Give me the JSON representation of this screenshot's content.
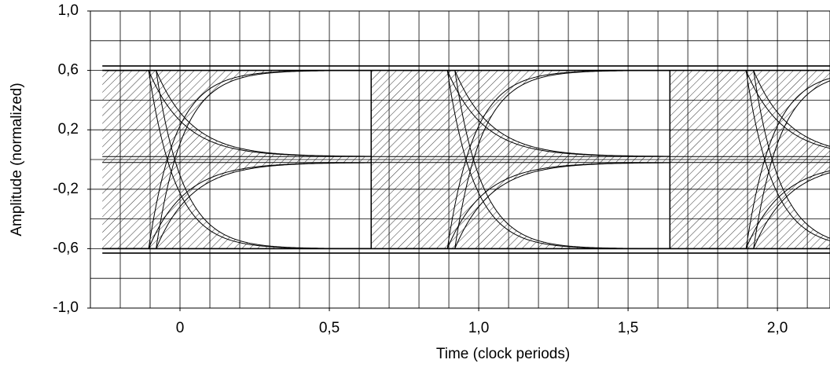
{
  "chart_data": {
    "type": "eye",
    "xlabel": "Time (clock periods)",
    "ylabel": "Amplitude (normalized)",
    "xlim": [
      -0.3,
      2.176
    ],
    "ylim": [
      -1.0,
      1.0
    ],
    "xticks": [
      0,
      {
        "value": 0.5,
        "label": "0,5"
      },
      {
        "value": 1.0,
        "label": "1,0"
      },
      {
        "value": 1.5,
        "label": "1,5"
      },
      {
        "value": 2.0,
        "label": "2,0"
      }
    ],
    "yticks": [
      {
        "value": 1.0,
        "label": "1,0"
      },
      {
        "value": 0.6,
        "label": "0,6"
      },
      {
        "value": 0.2,
        "label": "0,2"
      },
      {
        "value": -0.2,
        "label": "-0,2"
      },
      {
        "value": -0.6,
        "label": "-0,6"
      },
      {
        "value": -1.0,
        "label": "-1,0"
      }
    ],
    "xgrid_step": 0.1,
    "ygrid_step": 0.2,
    "grid": true,
    "levels": [
      0.63,
      0.6,
      0.02,
      -0.02,
      -0.6,
      -0.63
    ],
    "transitions": [
      0,
      1,
      2
    ],
    "color": "#000000"
  }
}
